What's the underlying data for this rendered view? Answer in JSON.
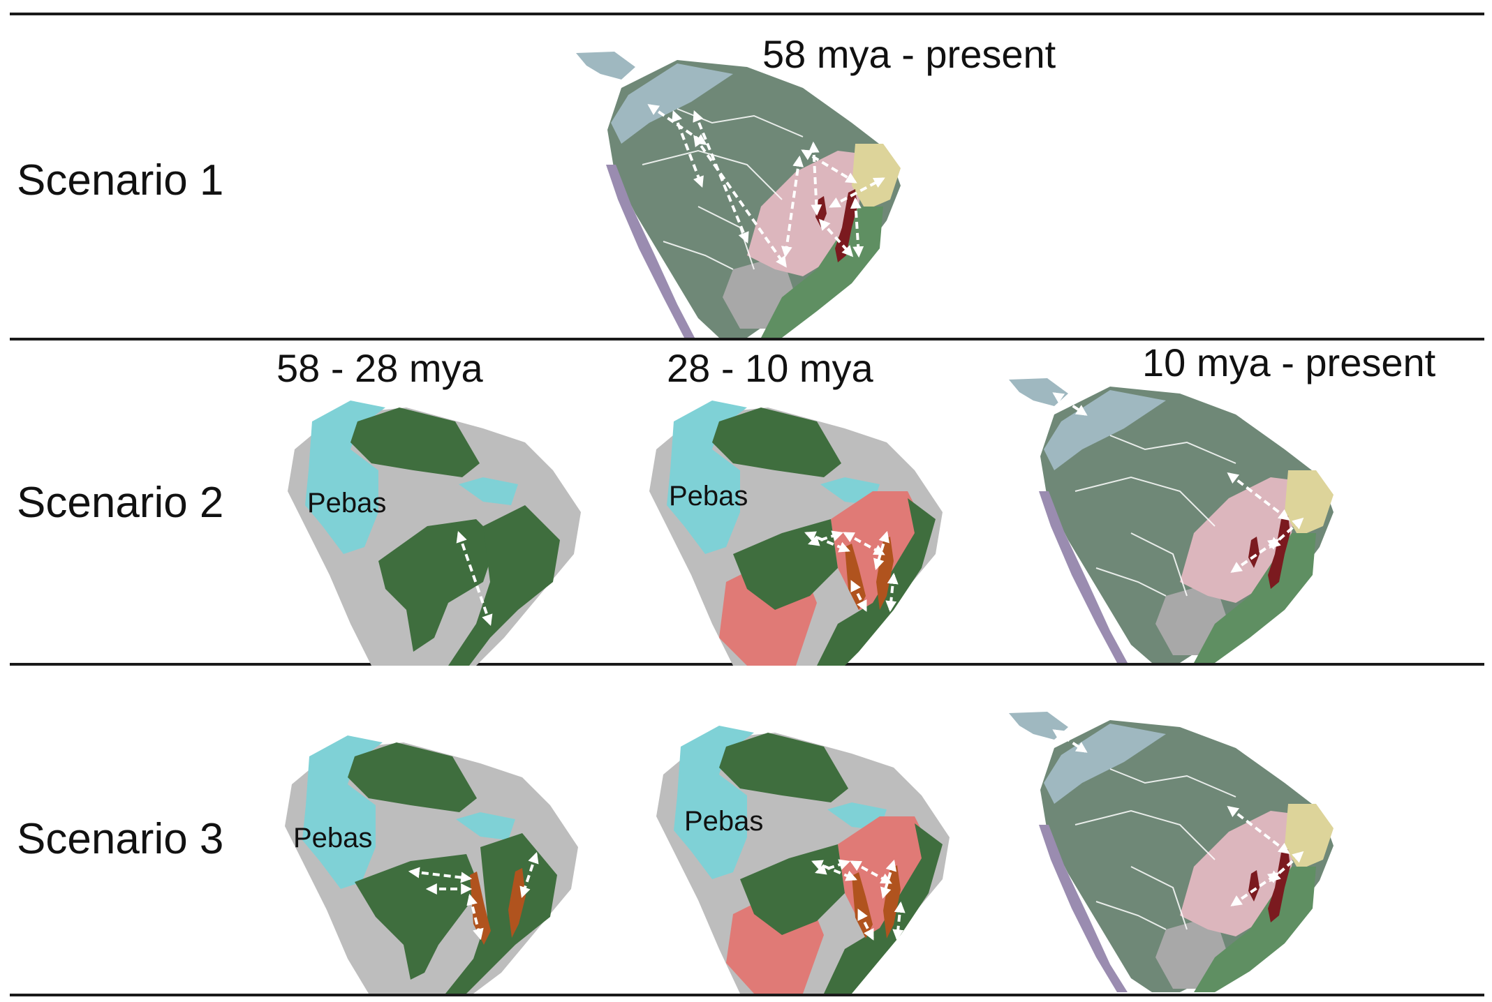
{
  "figure": {
    "scenarios": [
      {
        "label": "Scenario 1",
        "periods": [
          "58 mya - present"
        ]
      },
      {
        "label": "Scenario 2",
        "periods": [
          "58 - 28 mya",
          "28 - 10 mya",
          "10 mya - present"
        ]
      },
      {
        "label": "Scenario 3",
        "periods": []
      }
    ],
    "region_labels": {
      "pebas": "Pebas"
    }
  },
  "colors": {
    "paleo_land": "#bdbdbd",
    "pebas_lake": "#7fd1d6",
    "paleo_forest": "#3f6e3e",
    "paleo_dry_area": "#e07a76",
    "modern_forest": "#6f8877",
    "andes_forest": "#9fb8c0",
    "andes": "#9a8cb0",
    "dry_diagonal": "#dcb6bd",
    "caatinga": "#ddd49a",
    "atlantic_forest": "#5f8f62",
    "chaco": "#a8a8a8",
    "focal_taxon": "#7b1a1f",
    "focal_taxon_paleo": "#b0531e",
    "dispersal_arrow": "#ffffff"
  }
}
